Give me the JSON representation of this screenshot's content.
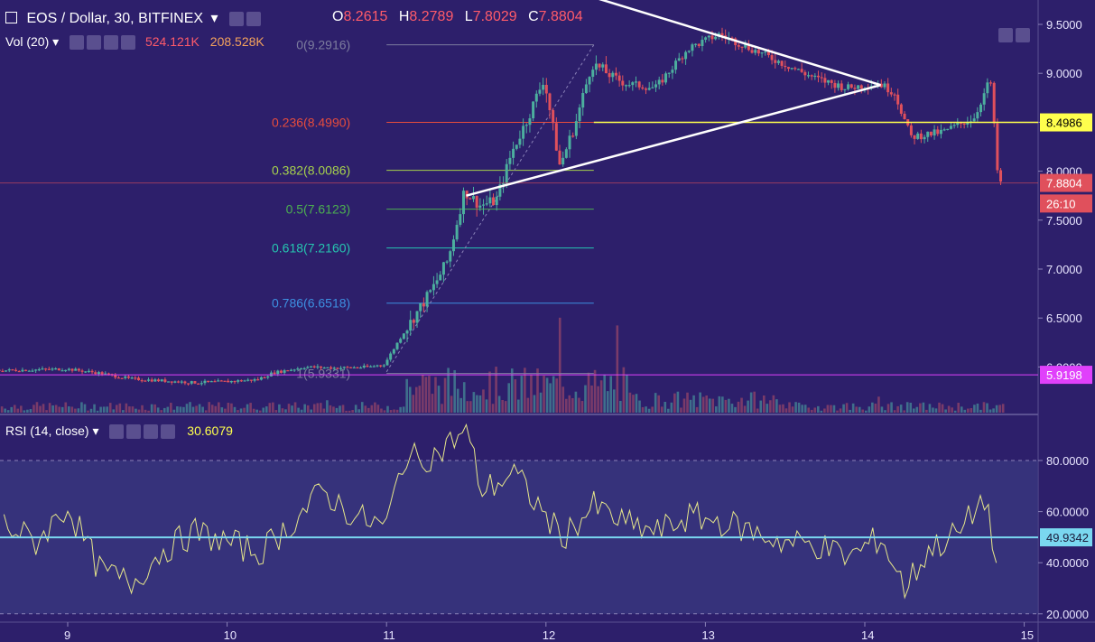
{
  "symbol": {
    "name": "EOS / Dollar, 30, BITFINEX",
    "dropdown_icon": "chevron-down-icon"
  },
  "ohlc": {
    "o_label": "O",
    "o": "8.2615",
    "h_label": "H",
    "h": "8.2789",
    "l_label": "L",
    "l": "7.8029",
    "c_label": "C",
    "c": "7.8804"
  },
  "volume_legend": {
    "name": "Vol (20)",
    "v1": "524.121K",
    "v2": "208.528K"
  },
  "rsi_legend": {
    "name": "RSI (14, close)",
    "value": "30.6079"
  },
  "colors": {
    "background": "#2d1f6b",
    "up": "#4caf9e",
    "down": "#e0505c",
    "rsi_line": "#e6e68a",
    "rsi_band": "#3a3a82"
  },
  "chart_data": [
    {
      "type": "candlestick",
      "title": "EOS / Dollar, 30, BITFINEX",
      "ylim": [
        5.45,
        9.8
      ],
      "y_ticks": [
        "9.5000",
        "9.0000",
        "8.5000",
        "8.0000",
        "7.5000",
        "7.0000",
        "6.5000",
        "6.0000"
      ],
      "x_ticks": [
        "9",
        "10",
        "11",
        "12",
        "13",
        "14",
        "15"
      ],
      "price_path": [
        [
          8.5,
          5.96
        ],
        [
          9.0,
          5.98
        ],
        [
          9.2,
          5.94
        ],
        [
          9.4,
          5.88
        ],
        [
          9.6,
          5.86
        ],
        [
          9.8,
          5.84
        ],
        [
          10.0,
          5.85
        ],
        [
          10.2,
          5.87
        ],
        [
          10.3,
          5.94
        ],
        [
          10.5,
          6.0
        ],
        [
          10.7,
          5.99
        ],
        [
          10.9,
          6.0
        ],
        [
          11.0,
          6.03
        ],
        [
          11.1,
          6.3
        ],
        [
          11.2,
          6.55
        ],
        [
          11.3,
          6.8
        ],
        [
          11.4,
          7.1
        ],
        [
          11.5,
          7.8
        ],
        [
          11.6,
          7.65
        ],
        [
          11.7,
          7.7
        ],
        [
          11.8,
          8.2
        ],
        [
          11.9,
          8.55
        ],
        [
          12.0,
          8.95
        ],
        [
          12.1,
          8.05
        ],
        [
          12.2,
          8.5
        ],
        [
          12.3,
          9.1
        ],
        [
          12.5,
          8.9
        ],
        [
          12.7,
          8.85
        ],
        [
          12.9,
          9.25
        ],
        [
          13.1,
          9.4
        ],
        [
          13.3,
          9.25
        ],
        [
          13.5,
          9.1
        ],
        [
          13.7,
          8.95
        ],
        [
          13.9,
          8.85
        ],
        [
          14.1,
          8.9
        ],
        [
          14.2,
          8.8
        ],
        [
          14.3,
          8.35
        ],
        [
          14.5,
          8.4
        ],
        [
          14.7,
          8.55
        ],
        [
          14.8,
          8.95
        ],
        [
          14.85,
          7.88
        ]
      ],
      "fib_levels": [
        {
          "label": "0(9.2916)",
          "value": 9.2916,
          "color": "#7d7d9e"
        },
        {
          "label": "0.236(8.4990)",
          "value": 8.499,
          "color": "#e74c3c"
        },
        {
          "label": "0.382(8.0086)",
          "value": 8.0086,
          "color": "#a6d14c"
        },
        {
          "label": "0.5(7.6123)",
          "value": 7.6123,
          "color": "#4caf50"
        },
        {
          "label": "0.618(7.2160)",
          "value": 7.216,
          "color": "#26c6b0"
        },
        {
          "label": "0.786(6.6518)",
          "value": 6.6518,
          "color": "#3d8fe0"
        },
        {
          "label": "1(5.9331)",
          "value": 5.9331,
          "color": "#7d7d9e"
        }
      ],
      "price_labels": [
        {
          "text": "8.4986",
          "value": 8.4986,
          "bg": "#ffff4d",
          "fg": "#000000"
        },
        {
          "text": "7.8804",
          "value": 7.8804,
          "bg": "#e0505c",
          "fg": "#ffffff"
        },
        {
          "text": "26:10",
          "value": 7.67,
          "bg": "#e0505c",
          "fg": "#ffffff"
        },
        {
          "text": "5.9198",
          "value": 5.9198,
          "bg": "#e040fb",
          "fg": "#ffffff"
        }
      ],
      "trendlines": [
        {
          "from": [
            11.5,
            7.75
          ],
          "to": [
            14.1,
            8.88
          ]
        },
        {
          "from": [
            11.75,
            10.05
          ],
          "to": [
            14.1,
            8.88
          ]
        }
      ],
      "horizontal_lines": [
        8.4986,
        5.9198
      ]
    },
    {
      "type": "line",
      "title": "RSI (14, close)",
      "ylim": [
        18,
        97
      ],
      "y_ticks": [
        "80.0000",
        "60.0000",
        "40.0000",
        "20.0000"
      ],
      "bands": [
        80,
        20
      ],
      "reference_line": {
        "label": "49.9342",
        "value": 49.9342
      },
      "x": [
        8.6,
        8.8,
        9.0,
        9.2,
        9.4,
        9.6,
        9.8,
        10.0,
        10.2,
        10.4,
        10.6,
        10.8,
        11.0,
        11.1,
        11.3,
        11.5,
        11.6,
        11.8,
        12.0,
        12.1,
        12.3,
        12.5,
        12.7,
        12.9,
        13.1,
        13.3,
        13.5,
        13.7,
        13.9,
        14.1,
        14.25,
        14.4,
        14.6,
        14.75,
        14.85
      ],
      "values": [
        55,
        48,
        62,
        37,
        32,
        45,
        52,
        48,
        44,
        55,
        68,
        58,
        54,
        80,
        82,
        92,
        68,
        75,
        58,
        50,
        62,
        55,
        52,
        58,
        56,
        52,
        48,
        47,
        42,
        50,
        30,
        45,
        52,
        66,
        31
      ]
    }
  ]
}
